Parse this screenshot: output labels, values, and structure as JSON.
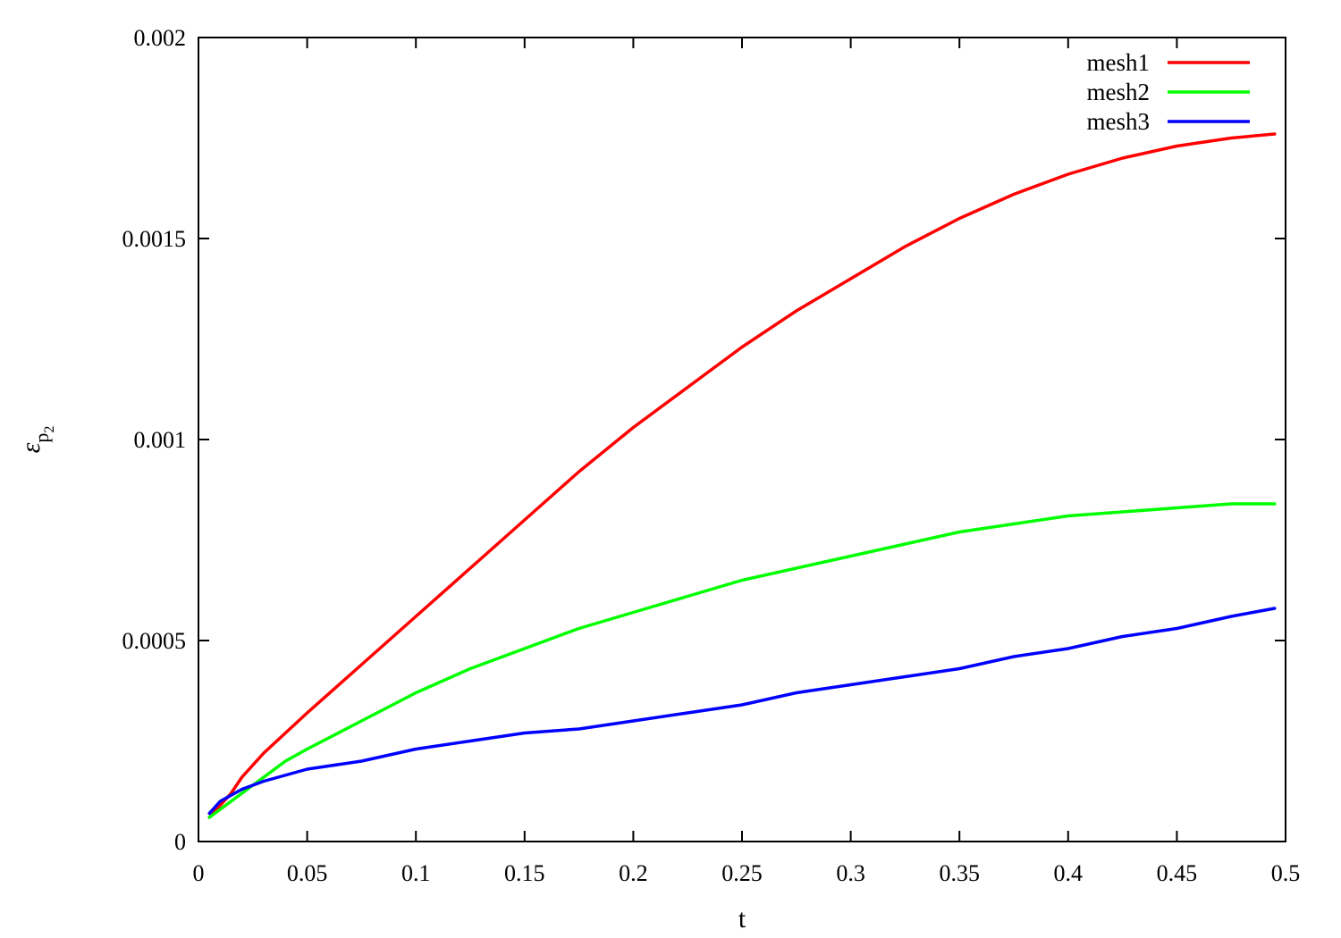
{
  "chart_data": {
    "type": "line",
    "title": "",
    "xlabel": "t",
    "ylabel": "ε",
    "ylabel_subscript": "p",
    "ylabel_subsubscript": "2",
    "xlim": [
      0,
      0.5
    ],
    "ylim": [
      0,
      0.002
    ],
    "x_ticks": [
      0,
      0.05,
      0.1,
      0.15,
      0.2,
      0.25,
      0.3,
      0.35,
      0.4,
      0.45,
      0.5
    ],
    "x_tick_labels": [
      "0",
      "0.05",
      "0.1",
      "0.15",
      "0.2",
      "0.25",
      "0.3",
      "0.35",
      "0.4",
      "0.45",
      "0.5"
    ],
    "y_ticks": [
      0,
      0.0005,
      0.001,
      0.0015,
      0.002
    ],
    "y_tick_labels": [
      "0",
      "0.0005",
      "0.001",
      "0.0015",
      "0.002"
    ],
    "grid": false,
    "legend_position": "top-right",
    "series": [
      {
        "name": "mesh1",
        "color": "#ff0000",
        "x": [
          0.005,
          0.01,
          0.015,
          0.02,
          0.03,
          0.05,
          0.075,
          0.1,
          0.125,
          0.15,
          0.175,
          0.2,
          0.225,
          0.25,
          0.275,
          0.3,
          0.325,
          0.35,
          0.375,
          0.4,
          0.425,
          0.45,
          0.475,
          0.495
        ],
        "y": [
          6e-05,
          9e-05,
          0.00012,
          0.00016,
          0.00022,
          0.00032,
          0.00044,
          0.00056,
          0.00068,
          0.0008,
          0.00092,
          0.00103,
          0.00113,
          0.00123,
          0.00132,
          0.0014,
          0.00148,
          0.00155,
          0.00161,
          0.00166,
          0.0017,
          0.00173,
          0.00175,
          0.00176
        ]
      },
      {
        "name": "mesh2",
        "color": "#00ff00",
        "x": [
          0.005,
          0.01,
          0.02,
          0.03,
          0.04,
          0.05,
          0.075,
          0.1,
          0.125,
          0.15,
          0.175,
          0.2,
          0.225,
          0.25,
          0.275,
          0.3,
          0.325,
          0.35,
          0.375,
          0.4,
          0.425,
          0.45,
          0.475,
          0.495
        ],
        "y": [
          6e-05,
          8e-05,
          0.00012,
          0.00016,
          0.0002,
          0.00023,
          0.0003,
          0.00037,
          0.00043,
          0.00048,
          0.00053,
          0.00057,
          0.00061,
          0.00065,
          0.00068,
          0.00071,
          0.00074,
          0.00077,
          0.00079,
          0.00081,
          0.00082,
          0.00083,
          0.00084,
          0.00084
        ]
      },
      {
        "name": "mesh3",
        "color": "#0000ff",
        "x": [
          0.005,
          0.01,
          0.02,
          0.03,
          0.05,
          0.075,
          0.1,
          0.125,
          0.15,
          0.175,
          0.2,
          0.225,
          0.25,
          0.275,
          0.3,
          0.325,
          0.35,
          0.375,
          0.4,
          0.425,
          0.45,
          0.475,
          0.495
        ],
        "y": [
          7e-05,
          0.0001,
          0.00013,
          0.00015,
          0.00018,
          0.0002,
          0.00023,
          0.00025,
          0.00027,
          0.00028,
          0.0003,
          0.00032,
          0.00034,
          0.00037,
          0.00039,
          0.00041,
          0.00043,
          0.00046,
          0.00048,
          0.00051,
          0.00053,
          0.00056,
          0.00058
        ]
      }
    ]
  }
}
